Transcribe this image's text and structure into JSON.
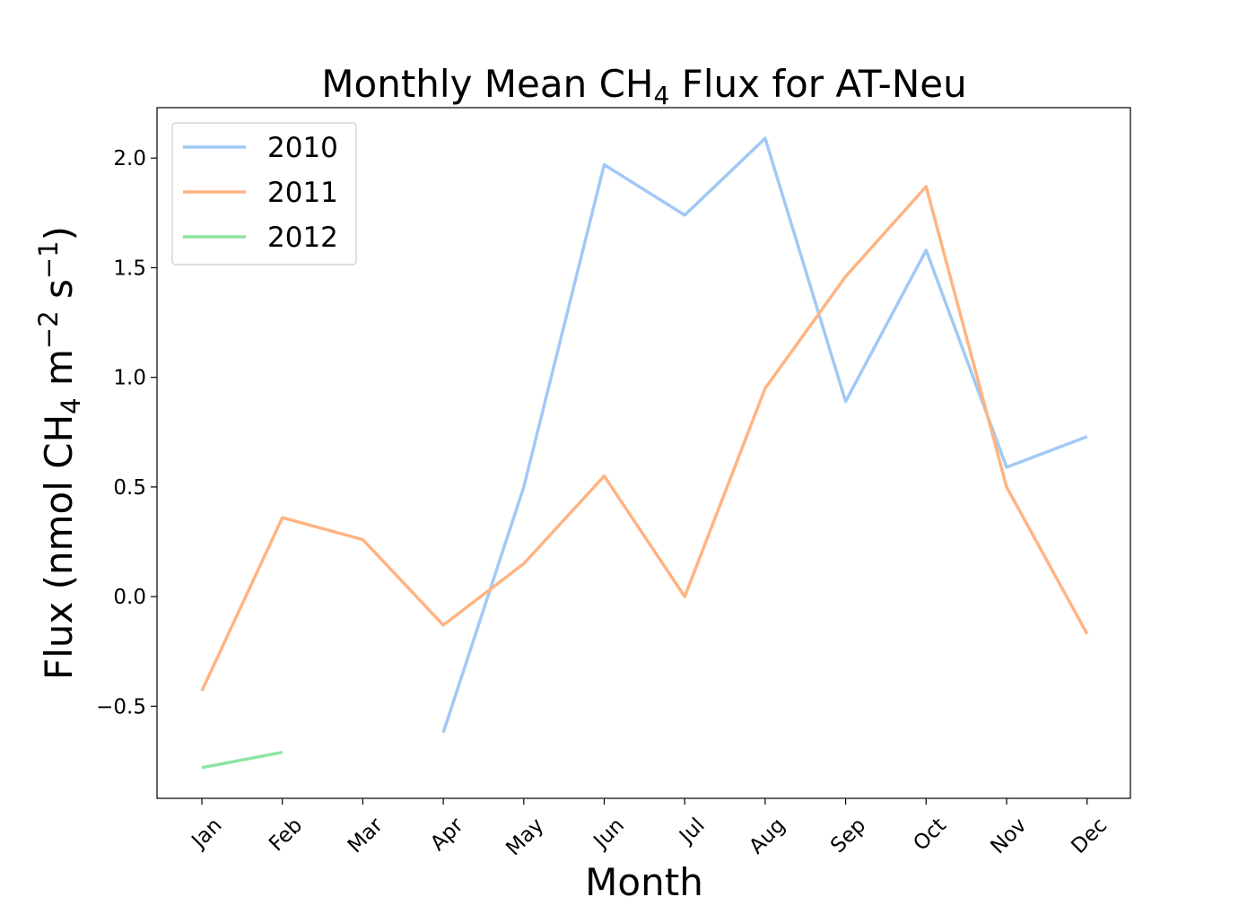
{
  "chart_data": {
    "type": "line",
    "title": "Monthly Mean CH",
    "title_sub": "4",
    "title_rest": " Flux for AT-Neu",
    "xlabel": "Month",
    "ylabel_parts": {
      "a": "Flux (nmol CH",
      "sub": "4",
      "b": " m",
      "sup1": "−2",
      "c": " s",
      "sup2": "−1",
      "d": ")"
    },
    "categories": [
      "Jan",
      "Feb",
      "Mar",
      "Apr",
      "May",
      "Jun",
      "Jul",
      "Aug",
      "Sep",
      "Oct",
      "Nov",
      "Dec"
    ],
    "yticks": [
      -0.5,
      0.0,
      0.5,
      1.0,
      1.5,
      2.0
    ],
    "ytick_labels": [
      "−0.5",
      "0.0",
      "0.5",
      "1.0",
      "1.5",
      "2.0"
    ],
    "ylim": [
      -0.92,
      2.23
    ],
    "grid": false,
    "legend_position": "top-left",
    "series": [
      {
        "name": "2010",
        "color": "#a1c9f4",
        "values": [
          null,
          null,
          null,
          -0.62,
          0.5,
          1.97,
          1.74,
          2.09,
          0.89,
          1.58,
          0.59,
          0.73
        ]
      },
      {
        "name": "2011",
        "color": "#ffb482",
        "values": [
          -0.43,
          0.36,
          0.26,
          -0.13,
          0.15,
          0.55,
          0.0,
          0.95,
          1.46,
          1.87,
          0.5,
          -0.17
        ]
      },
      {
        "name": "2012",
        "color": "#8de5a1",
        "values": [
          -0.78,
          -0.71,
          null,
          null,
          null,
          null,
          null,
          null,
          null,
          null,
          null,
          null
        ]
      }
    ]
  }
}
